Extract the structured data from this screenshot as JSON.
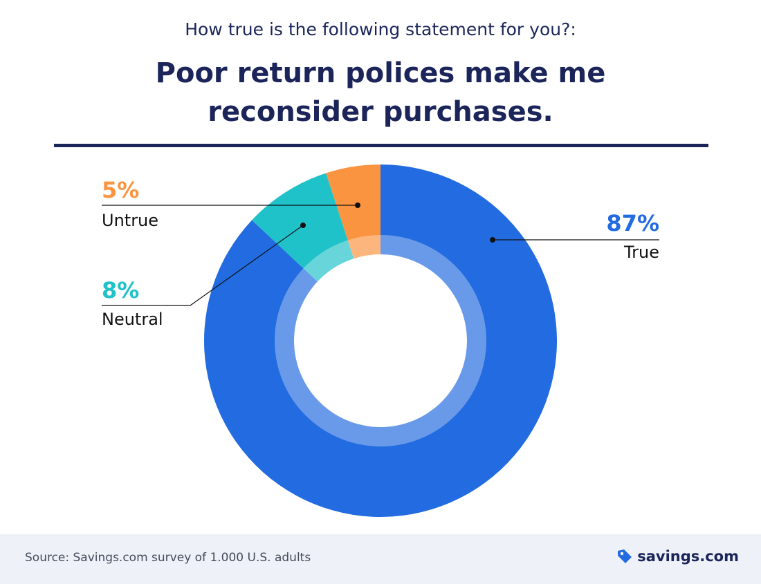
{
  "chart_data": {
    "type": "pie",
    "subtitle": "How true is the following statement for you?:",
    "title": "Poor return polices make me reconsider purchases.",
    "categories": [
      "True",
      "Neutral",
      "Untrue"
    ],
    "values": [
      87,
      8,
      5
    ],
    "value_labels": [
      "87%",
      "8%",
      "5%"
    ],
    "colors": [
      "#226be0",
      "#1fc2c9",
      "#fb9440"
    ],
    "source": "Source: Savings.com survey of 1.000 U.S. adults",
    "brand": "savings.com"
  }
}
